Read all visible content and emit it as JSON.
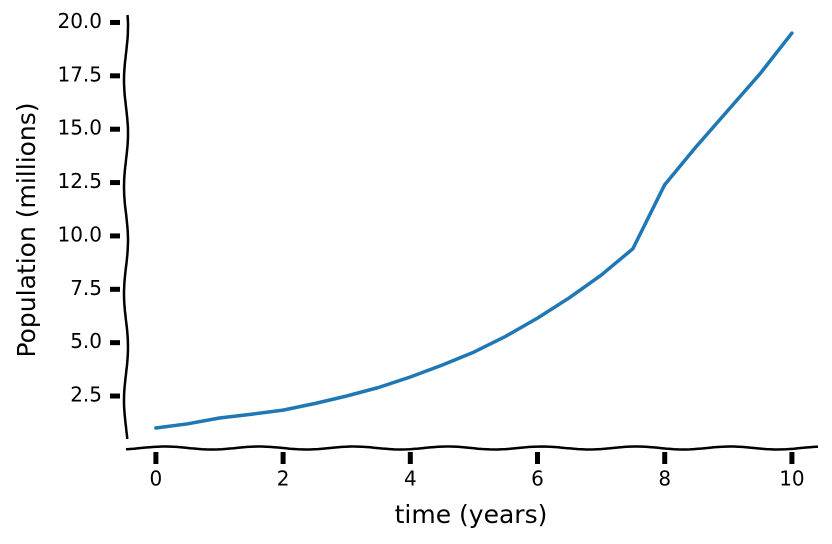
{
  "chart_data": {
    "type": "line",
    "x_label": "time (years)",
    "y_label": "Population (millions)",
    "x": [
      0,
      0.5,
      1,
      1.5,
      2,
      2.5,
      3,
      3.5,
      4,
      4.5,
      5,
      5.5,
      6,
      6.5,
      7,
      7.5,
      8,
      8.5,
      9,
      9.5,
      10
    ],
    "values": [
      1.0,
      1.2,
      1.47,
      1.65,
      1.84,
      2.15,
      2.5,
      2.9,
      3.39,
      3.95,
      4.56,
      5.3,
      6.15,
      7.1,
      8.16,
      9.4,
      12.4,
      14.2,
      15.9,
      17.6,
      19.5
    ],
    "color": "#1f77b4",
    "xlim": [
      -0.47,
      10.41
    ],
    "ylim": [
      0.44,
      20.35
    ],
    "xticks": [
      0,
      2,
      4,
      6,
      8,
      10
    ],
    "yticks": [
      2.5,
      {
        "value": 5,
        "label": "5.0"
      },
      7.5,
      {
        "value": 10,
        "label": "10.0"
      },
      12.5,
      {
        "value": 15,
        "label": "15.0"
      },
      17.5,
      {
        "value": 20,
        "label": "20.0"
      }
    ]
  }
}
